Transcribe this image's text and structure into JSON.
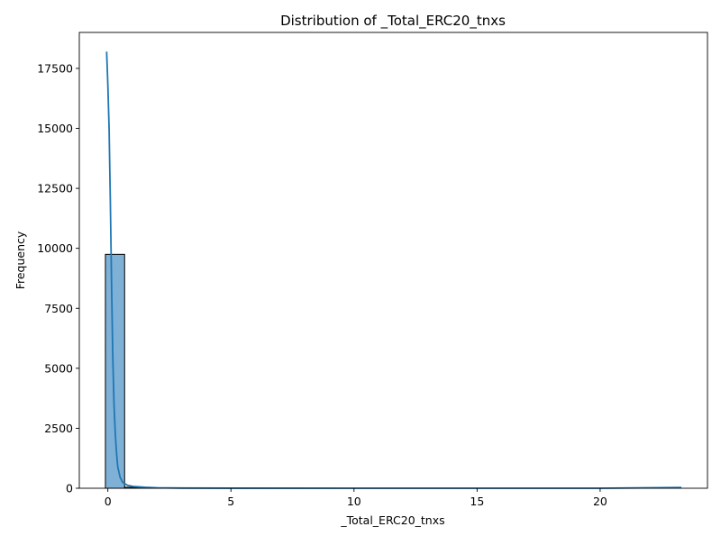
{
  "chart_data": {
    "type": "bar",
    "title": "Distribution of _Total_ERC20_tnxs",
    "xlabel": "_Total_ERC20_tnxs",
    "ylabel": "Frequency",
    "xlim": [
      -1.16,
      24.36
    ],
    "ylim": [
      0,
      19000
    ],
    "grid": false,
    "legend": "none",
    "x_ticks": [
      0,
      5,
      10,
      15,
      20
    ],
    "y_ticks": [
      0,
      2500,
      5000,
      7500,
      10000,
      12500,
      15000,
      17500
    ],
    "bins": [
      {
        "x0": -0.1,
        "x1": 0.68,
        "count": 9750
      },
      {
        "x0": 0.68,
        "x1": 1.46,
        "count": 40
      },
      {
        "x0": 1.46,
        "x1": 2.24,
        "count": 8
      }
    ],
    "kde": {
      "x": [
        -0.05,
        0.0,
        0.05,
        0.1,
        0.15,
        0.2,
        0.25,
        0.3,
        0.35,
        0.4,
        0.5,
        0.6,
        0.8,
        1.0,
        1.5,
        2.0,
        3.0,
        5.0,
        10.0,
        15.0,
        20.0,
        23.3
      ],
      "y": [
        18200,
        16800,
        15000,
        12000,
        8500,
        5500,
        3500,
        2300,
        1500,
        900,
        450,
        250,
        120,
        80,
        40,
        20,
        8,
        3,
        1,
        0,
        0,
        30
      ]
    },
    "colors": {
      "bar_fill": "#7fb1d7",
      "bar_edge": "#000000",
      "kde_line": "#1f77b4"
    }
  }
}
